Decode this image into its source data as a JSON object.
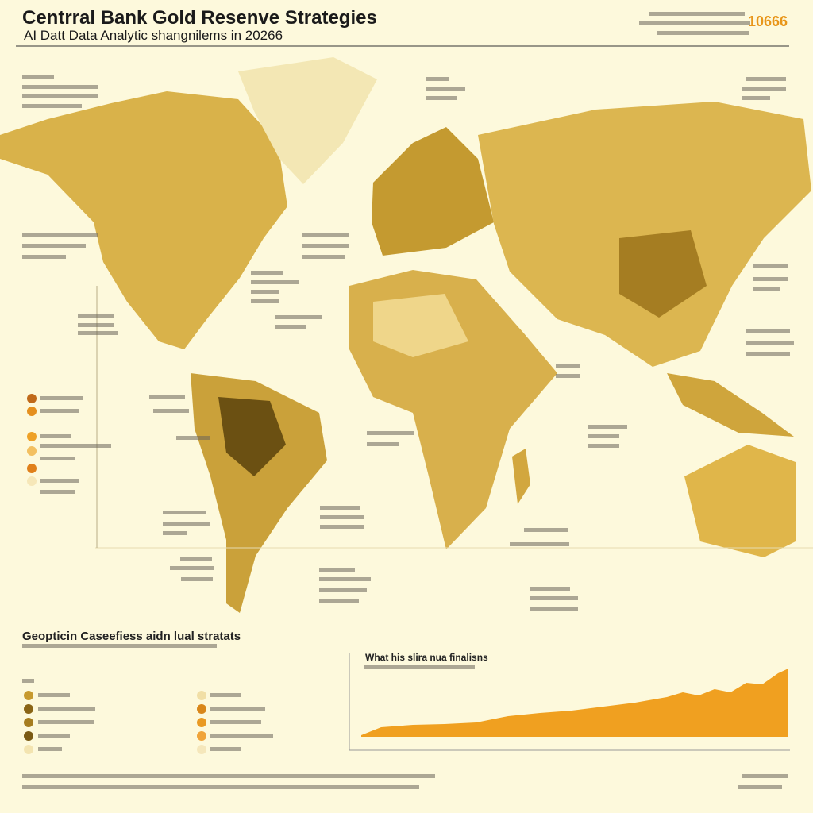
{
  "header": {
    "title": "Centrral Bank Gold Resenve Strategies",
    "subtitle": "AI Datt Data Analytic shangnilems in 20266",
    "badge": "10666"
  },
  "section": {
    "title": "Geopticin Caseefiess aidn lual stratats"
  },
  "chart": {
    "title": "What his slira nua finalisns"
  }
}
